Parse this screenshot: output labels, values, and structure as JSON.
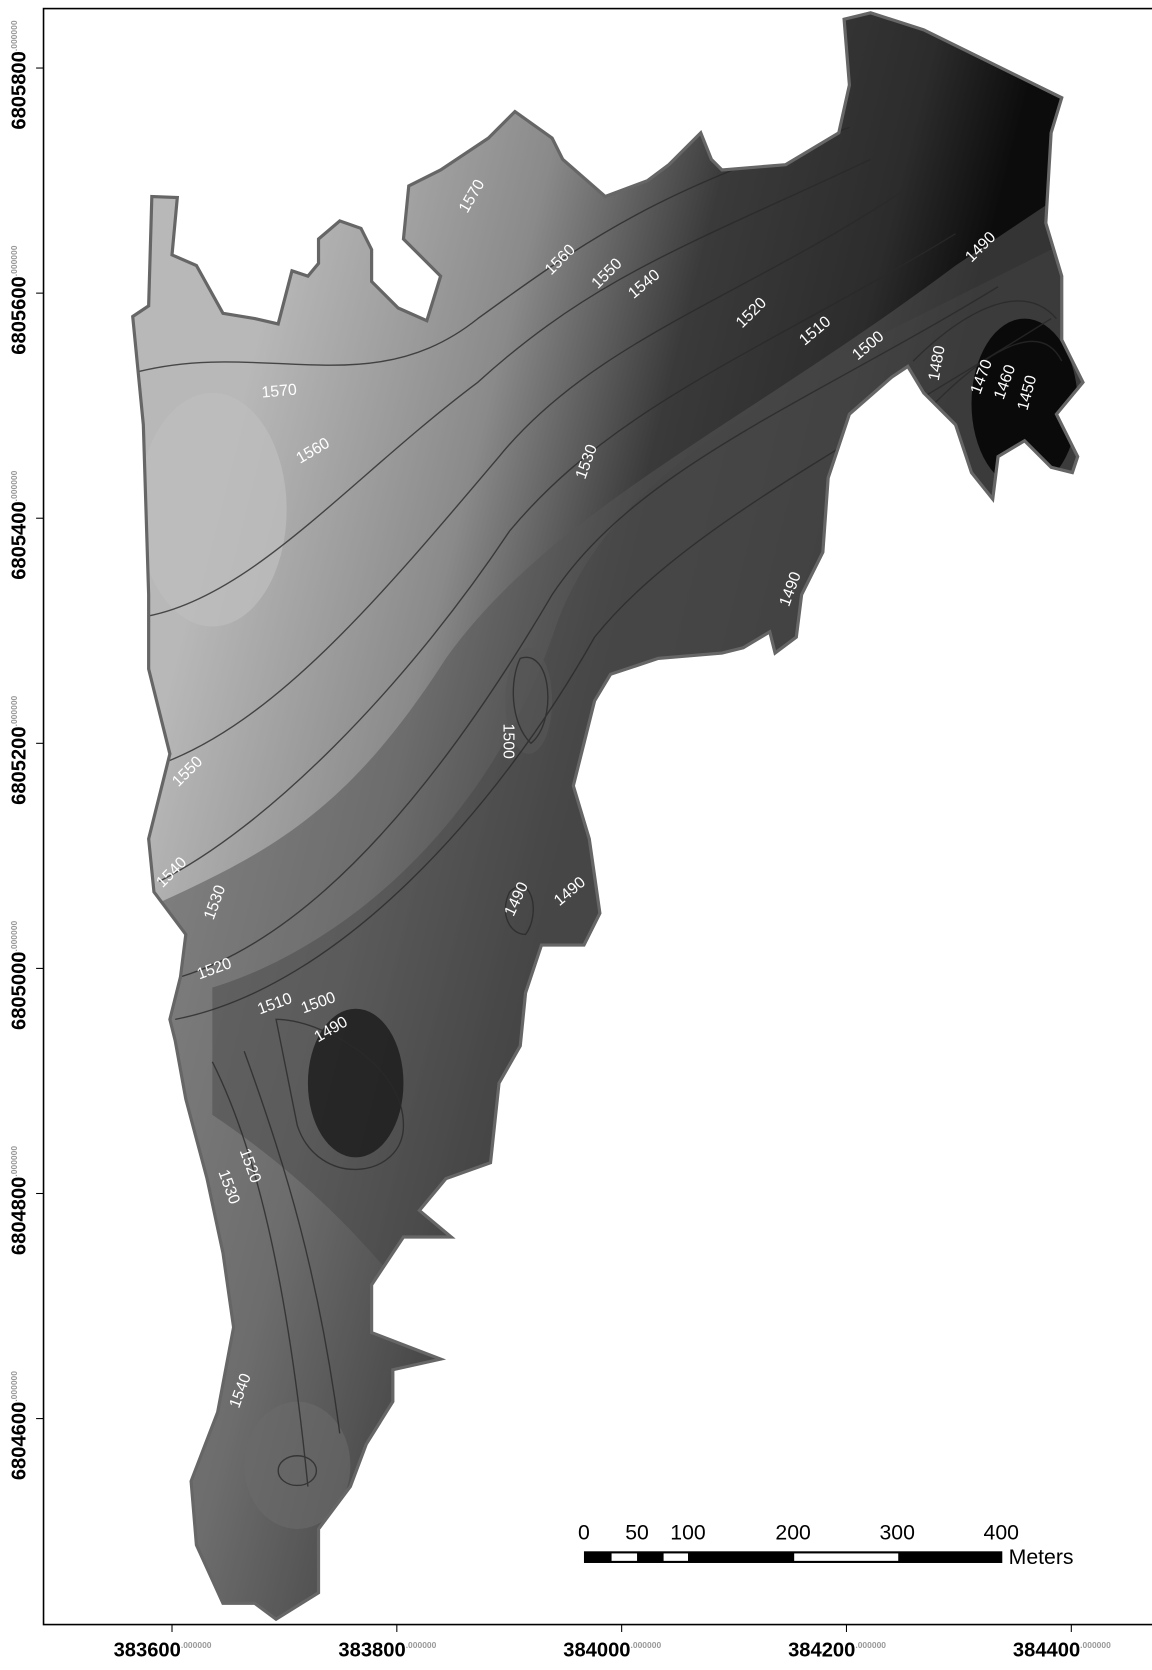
{
  "map": {
    "x_ticks": [
      {
        "value": 383600,
        "label": "383600",
        "suffix": ".000000"
      },
      {
        "value": 383800,
        "label": "383800",
        "suffix": ".000000"
      },
      {
        "value": 384000,
        "label": "384000",
        "suffix": ".000000"
      },
      {
        "value": 384200,
        "label": "384200",
        "suffix": ".000000"
      },
      {
        "value": 384400,
        "label": "384400",
        "suffix": ".000000"
      }
    ],
    "y_ticks": [
      {
        "value": 6805800,
        "label": "6805800",
        "suffix": ".000000"
      },
      {
        "value": 6805600,
        "label": "6805600",
        "suffix": ".000000"
      },
      {
        "value": 6805400,
        "label": "6805400",
        "suffix": ".000000"
      },
      {
        "value": 6805200,
        "label": "6805200",
        "suffix": ".000000"
      },
      {
        "value": 6805000,
        "label": "6805000",
        "suffix": ".000000"
      },
      {
        "value": 6804800,
        "label": "6804800",
        "suffix": ".000000"
      },
      {
        "value": 6804600,
        "label": "6804600",
        "suffix": ".000000"
      }
    ],
    "contour_labels": [
      "1570",
      "1560",
      "1550",
      "1540",
      "1520",
      "1510",
      "1500",
      "1490",
      "1480",
      "1470",
      "1460",
      "1450",
      "1570",
      "1560",
      "1530",
      "1490",
      "1500",
      "1550",
      "1540",
      "1530",
      "1490",
      "1490",
      "1520",
      "1510",
      "1500",
      "1490",
      "1520",
      "1530",
      "1540"
    ],
    "scale_bar": {
      "ticks": [
        0,
        50,
        100,
        200,
        300,
        400
      ],
      "unit": "Meters"
    }
  }
}
